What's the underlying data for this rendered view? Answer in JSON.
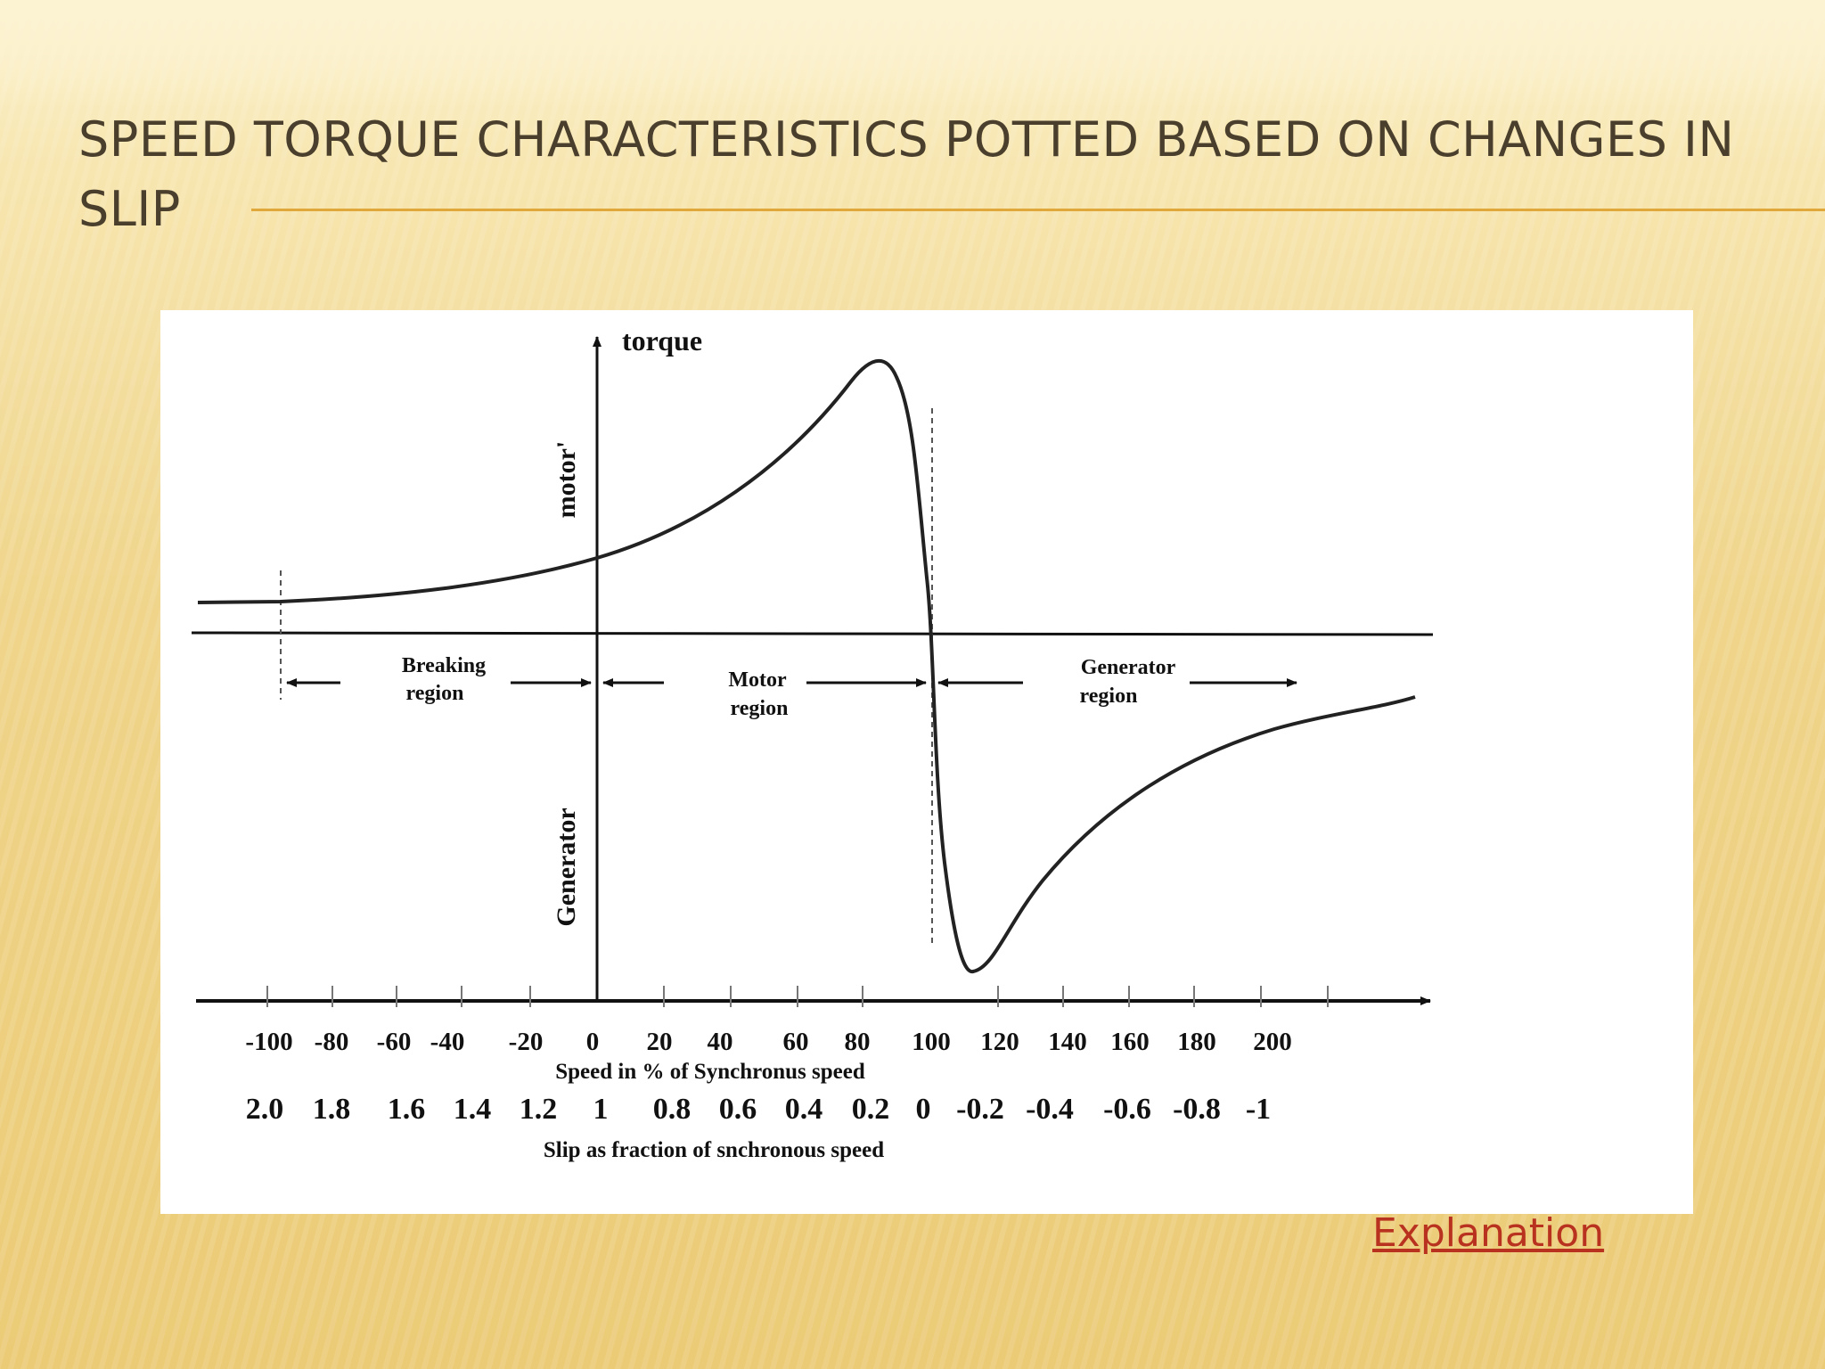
{
  "slide": {
    "title": "Speed torque characteristics potted based on changes in slip",
    "link_label": "Explanation"
  },
  "diagram": {
    "y_axis_label": "torque",
    "upper_label": "motor'",
    "lower_label": "Generator",
    "regions": [
      {
        "line1": "Breaking",
        "line2": "region"
      },
      {
        "line1": "Motor",
        "line2": "region"
      },
      {
        "line1": "Generator",
        "line2": "region"
      }
    ],
    "speed_ticks": [
      "-100",
      "-80",
      "-60",
      "-40",
      "-20",
      "0",
      "20",
      "40",
      "60",
      "80",
      "100",
      "120",
      "140",
      "160",
      "180",
      "200"
    ],
    "speed_axis_title": "Speed in % of Synchronus speed",
    "slip_ticks": [
      "2.0",
      "1.8",
      "1.6",
      "1.4",
      "1.2",
      "1",
      "0.8",
      "0.6",
      "0.4",
      "0.2",
      "0",
      "-0.2",
      "-0.4",
      "-0.6",
      "-0.8",
      "-1"
    ],
    "slip_axis_title": "Slip as fraction of snchronous speed"
  },
  "colors": {
    "background": "#efd48a",
    "title_text": "#4a3f2c",
    "rule": "#e0a83a",
    "link": "#b8321f"
  }
}
